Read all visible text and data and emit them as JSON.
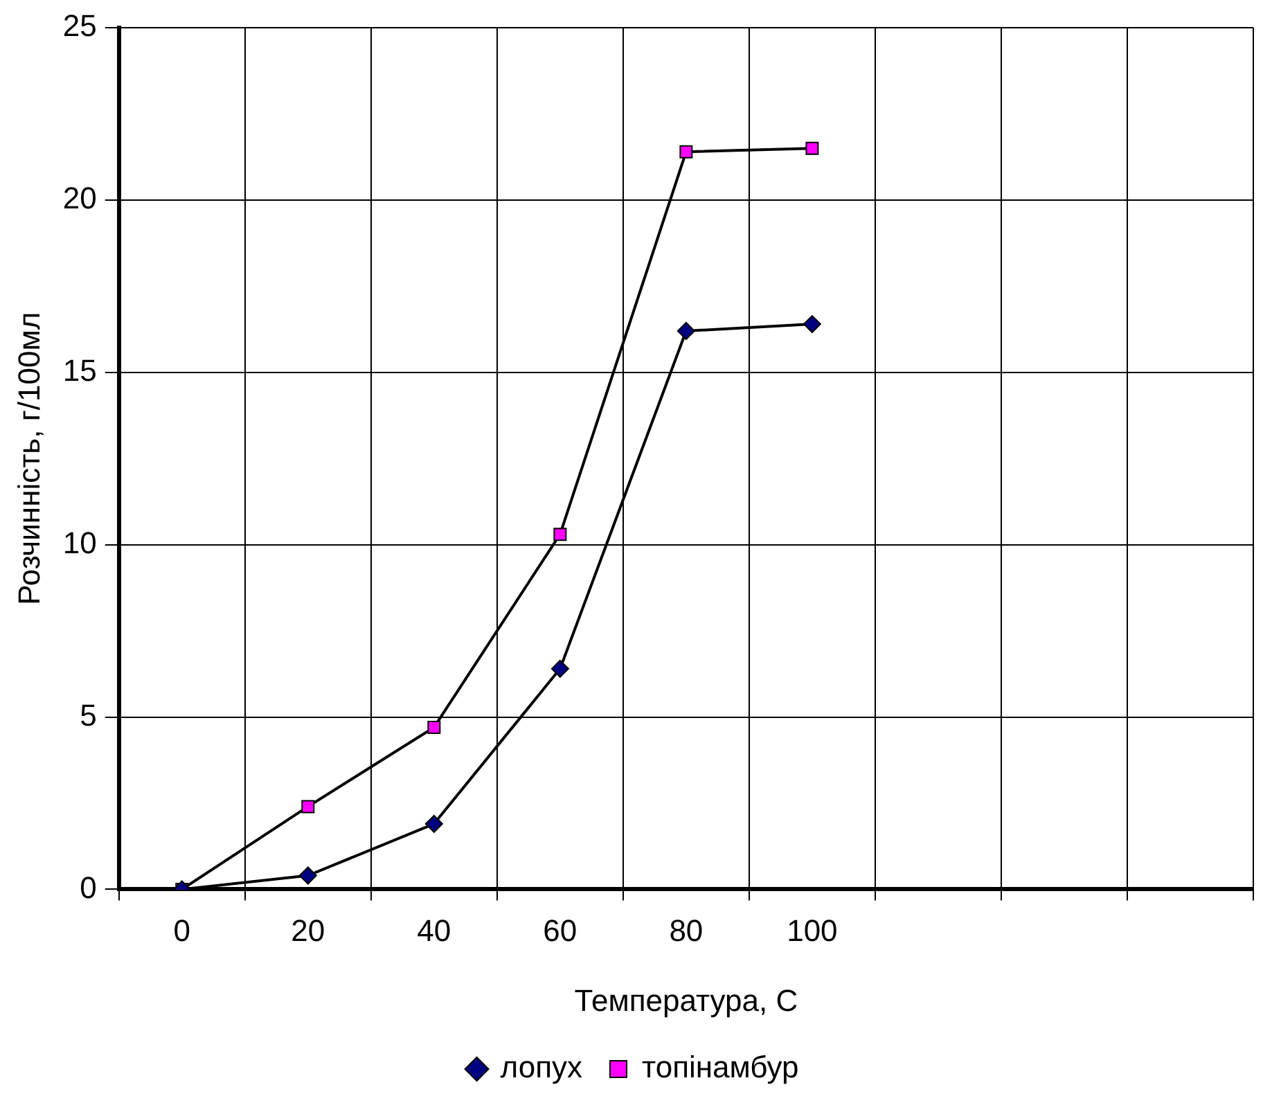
{
  "chart_data": {
    "type": "line",
    "xlabel": "Температура, С",
    "ylabel": "Розчинність, г/100мл",
    "categories": [
      "0",
      "20",
      "40",
      "60",
      "80",
      "100",
      null,
      null,
      null
    ],
    "series": [
      {
        "name": "лопух",
        "color": "#000080",
        "marker": "diamond",
        "values": [
          0,
          0.4,
          1.9,
          6.4,
          16.2,
          16.4,
          null,
          null,
          null
        ]
      },
      {
        "name": "топінамбур",
        "color": "#ff00ff",
        "marker": "square",
        "values": [
          0,
          2.4,
          4.7,
          10.3,
          21.4,
          21.5,
          null,
          null,
          null
        ]
      }
    ],
    "ylim": [
      0,
      25
    ],
    "yticks": [
      0,
      5,
      10,
      15,
      20,
      25
    ],
    "grid": true,
    "legend": "bottom"
  }
}
